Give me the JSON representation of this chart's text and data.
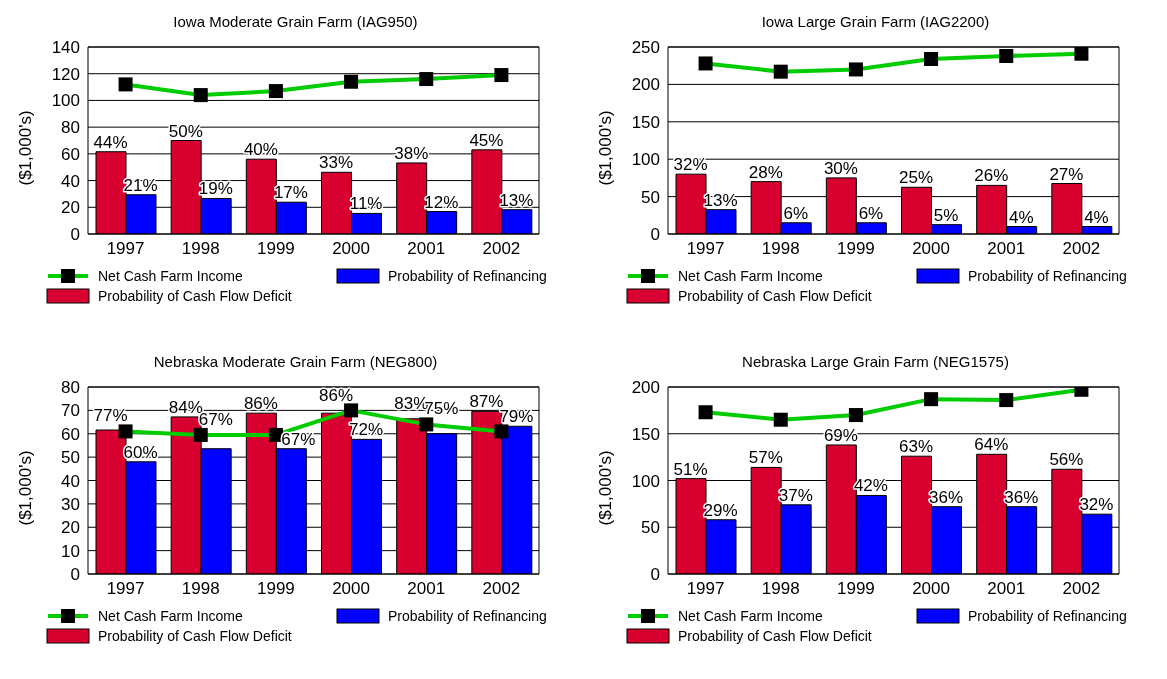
{
  "chart_data": [
    {
      "type": "bar",
      "title": "Iowa Moderate Grain Farm (IAG950)",
      "ylabel": "($1,000's)",
      "categories": [
        "1997",
        "1998",
        "1999",
        "2000",
        "2001",
        "2002"
      ],
      "ylim": [
        0,
        140
      ],
      "yticks": [
        0,
        20,
        40,
        60,
        80,
        100,
        120,
        140
      ],
      "y2lim": [
        0,
        100
      ],
      "grid": "y",
      "legend": "bottom",
      "series": [
        {
          "name": "Probability of Cash Flow Deficit",
          "axis": "y2",
          "color": "#d7002f",
          "values": [
            44,
            50,
            40,
            33,
            38,
            45
          ],
          "value_labels": [
            "44%",
            "50%",
            "40%",
            "33%",
            "38%",
            "45%"
          ]
        },
        {
          "name": "Probability of Refinancing",
          "axis": "y2",
          "color": "#0000ff",
          "values": [
            21,
            19,
            17,
            11,
            12,
            13
          ],
          "value_labels": [
            "21%",
            "19%",
            "17%",
            "11%",
            "12%",
            "13%"
          ]
        },
        {
          "name": "Net Cash Farm Income",
          "type": "line",
          "color": "#00cc00",
          "marker": "square",
          "values": [
            112,
            104,
            107,
            114,
            116,
            119
          ]
        }
      ]
    },
    {
      "type": "bar",
      "title": "Iowa Large Grain Farm (IAG2200)",
      "ylabel": "($1,000's)",
      "categories": [
        "1997",
        "1998",
        "1999",
        "2000",
        "2001",
        "2002"
      ],
      "ylim": [
        0,
        250
      ],
      "yticks": [
        0,
        50,
        100,
        150,
        200,
        250
      ],
      "y2lim": [
        0,
        100
      ],
      "grid": "y",
      "legend": "bottom",
      "series": [
        {
          "name": "Probability of Cash Flow Deficit",
          "axis": "y2",
          "color": "#d7002f",
          "values": [
            32,
            28,
            30,
            25,
            26,
            27
          ],
          "value_labels": [
            "32%",
            "28%",
            "30%",
            "25%",
            "26%",
            "27%"
          ]
        },
        {
          "name": "Probability of Refinancing",
          "axis": "y2",
          "color": "#0000ff",
          "values": [
            13,
            6,
            6,
            5,
            4,
            4
          ],
          "value_labels": [
            "13%",
            "6%",
            "6%",
            "5%",
            "4%",
            "4%"
          ]
        },
        {
          "name": "Net Cash Farm Income",
          "type": "line",
          "color": "#00cc00",
          "marker": "square",
          "values": [
            228,
            217,
            220,
            234,
            238,
            241
          ]
        }
      ]
    },
    {
      "type": "bar",
      "title": "Nebraska Moderate Grain Farm (NEG800)",
      "ylabel": "($1,000's)",
      "categories": [
        "1997",
        "1998",
        "1999",
        "2000",
        "2001",
        "2002"
      ],
      "ylim": [
        0,
        80
      ],
      "yticks": [
        0,
        10,
        20,
        30,
        40,
        50,
        60,
        70,
        80
      ],
      "y2lim": [
        0,
        100
      ],
      "grid": "y",
      "legend": "bottom",
      "series": [
        {
          "name": "Probability of Cash Flow Deficit",
          "axis": "y2",
          "color": "#d7002f",
          "values": [
            77,
            84,
            86,
            86,
            83,
            87
          ],
          "value_labels": [
            "77%",
            "84%",
            "86%",
            "86%",
            "83%",
            "87%"
          ]
        },
        {
          "name": "Probability of Refinancing",
          "axis": "y2",
          "color": "#0000ff",
          "values": [
            60,
            67,
            67,
            72,
            75,
            79
          ],
          "value_labels": [
            "60%",
            "67%",
            "67%",
            "72%",
            "75%",
            "79%"
          ]
        },
        {
          "name": "Net Cash Farm Income",
          "type": "line",
          "color": "#00cc00",
          "marker": "square",
          "values": [
            61,
            59.5,
            59.5,
            70,
            64,
            61
          ]
        }
      ]
    },
    {
      "type": "bar",
      "title": "Nebraska Large Grain Farm (NEG1575)",
      "ylabel": "($1,000's)",
      "categories": [
        "1997",
        "1998",
        "1999",
        "2000",
        "2001",
        "2002"
      ],
      "ylim": [
        0,
        200
      ],
      "yticks": [
        0,
        50,
        100,
        150,
        200
      ],
      "y2lim": [
        0,
        100
      ],
      "grid": "y",
      "legend": "bottom",
      "series": [
        {
          "name": "Probability of Cash Flow Deficit",
          "axis": "y2",
          "color": "#d7002f",
          "values": [
            51,
            57,
            69,
            63,
            64,
            56
          ],
          "value_labels": [
            "51%",
            "57%",
            "69%",
            "63%",
            "64%",
            "56%"
          ]
        },
        {
          "name": "Probability of Refinancing",
          "axis": "y2",
          "color": "#0000ff",
          "values": [
            29,
            37,
            42,
            36,
            36,
            32
          ],
          "value_labels": [
            "29%",
            "37%",
            "42%",
            "36%",
            "36%",
            "32%"
          ]
        },
        {
          "name": "Net Cash Farm Income",
          "type": "line",
          "color": "#00cc00",
          "marker": "square",
          "values": [
            173,
            165,
            170,
            187,
            186,
            197
          ]
        }
      ]
    }
  ]
}
